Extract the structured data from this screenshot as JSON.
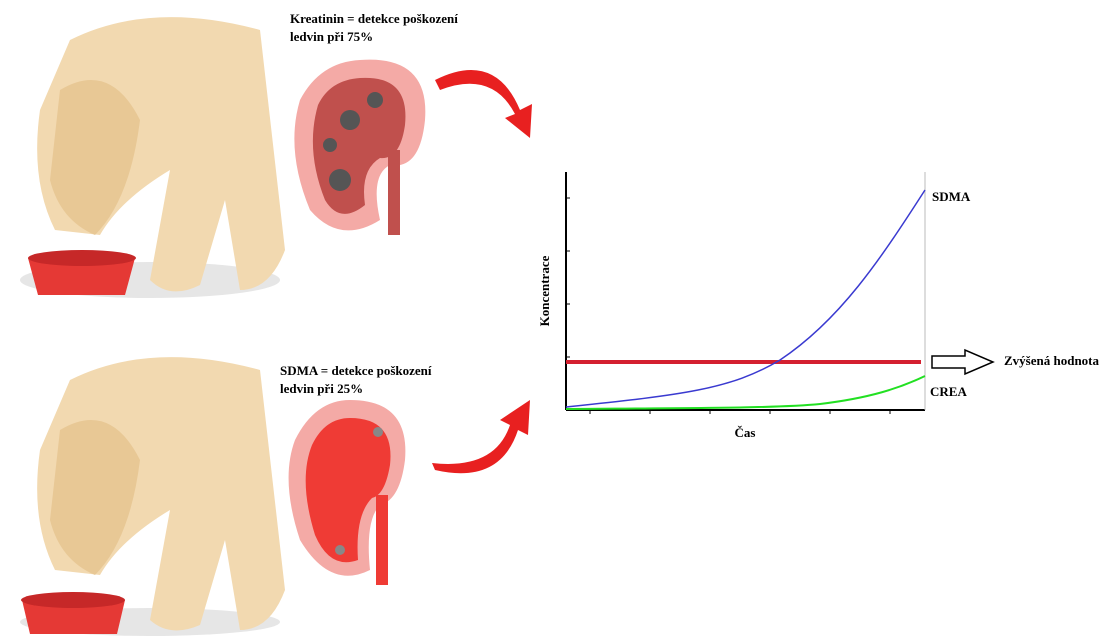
{
  "top_note": {
    "lines": [
      "Kreatinin = detekce poškození",
      "ledvin při 75%"
    ]
  },
  "bottom_note": {
    "lines": [
      "SDMA = detekce poškození",
      "ledvin při 25%"
    ]
  },
  "graph": {
    "y_label": "Koncentrace",
    "x_label": "Čas",
    "sdma_label": "SDMA",
    "crea_label": "CREA",
    "threshold_label": "Zvýšená hodnota"
  }
}
